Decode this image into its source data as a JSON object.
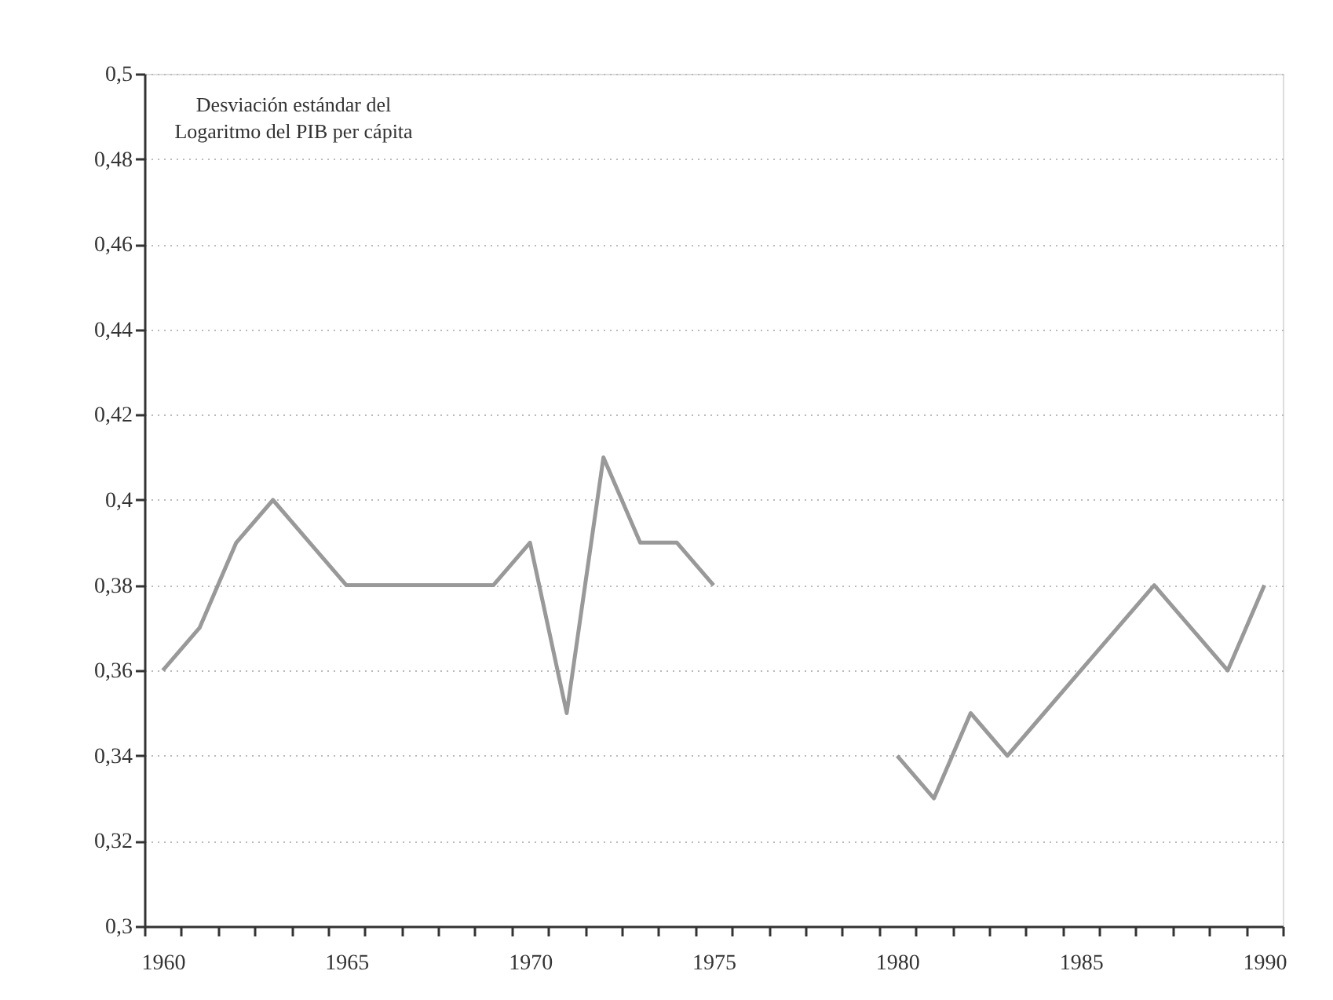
{
  "chart_data": {
    "type": "line",
    "ylabel": "Desviación estándar del Logaritmo del PIB per cápita",
    "categories": [
      "1960",
      null,
      null,
      null,
      null,
      "1965",
      null,
      null,
      null,
      null,
      "1970",
      null,
      null,
      null,
      null,
      "1975",
      null,
      null,
      null,
      null,
      "1980",
      null,
      null,
      null,
      null,
      "1985",
      null,
      null,
      null,
      null,
      "1990"
    ],
    "series": [
      {
        "color": "#999999",
        "values": [
          0.36,
          0.37,
          0.39,
          0.4,
          0.39,
          0.38,
          0.38,
          0.38,
          0.38,
          0.38,
          0.39,
          0.35,
          0.41,
          0.39,
          0.39,
          0.38,
          null,
          null,
          null,
          null,
          0.34,
          0.33,
          0.35,
          0.34,
          0.35,
          0.36,
          0.37,
          0.38,
          0.37,
          0.36,
          0.38
        ]
      }
    ],
    "ylim": [
      0.3,
      0.5
    ],
    "yticks": [
      {
        "value": 0.3,
        "label": "0,3"
      },
      {
        "value": 0.32,
        "label": "0,32"
      },
      {
        "value": 0.34,
        "label": "0,34"
      },
      {
        "value": 0.36,
        "label": "0,36"
      },
      {
        "value": 0.38,
        "label": "0,38"
      },
      {
        "value": 0.4,
        "label": "0,4"
      },
      {
        "value": 0.42,
        "label": "0,42"
      },
      {
        "value": 0.44,
        "label": "0,44"
      },
      {
        "value": 0.46,
        "label": "0,46"
      },
      {
        "value": 0.48,
        "label": "0,48"
      },
      {
        "value": 0.5,
        "label": "0,5"
      }
    ],
    "grid": "y",
    "line_style": "solid"
  }
}
